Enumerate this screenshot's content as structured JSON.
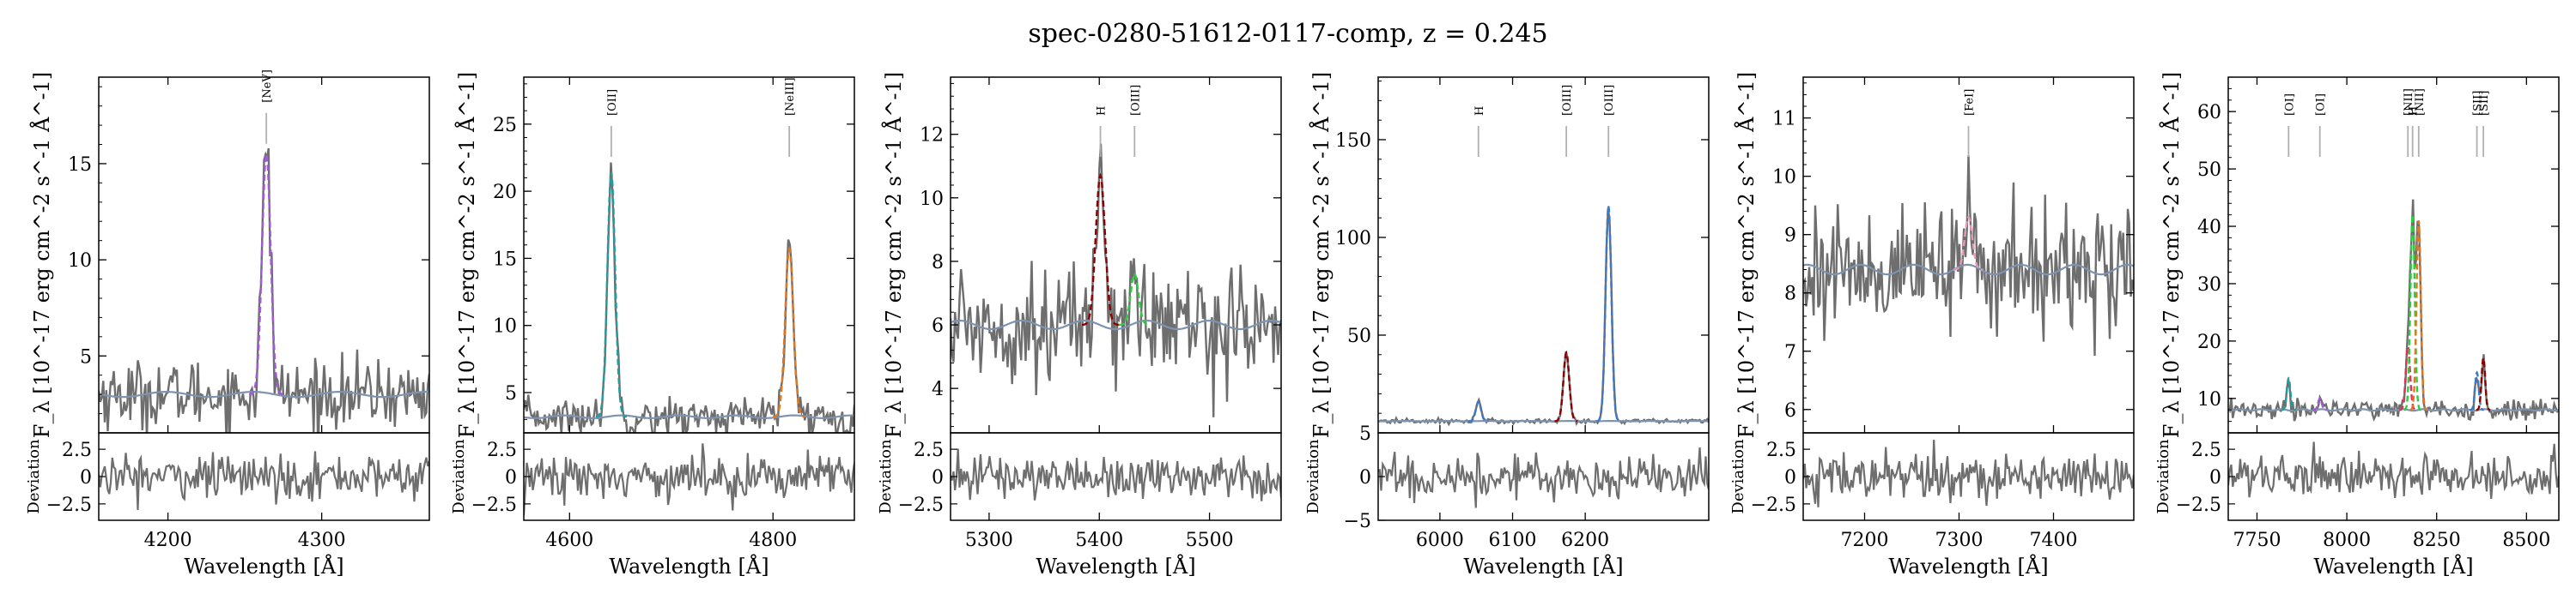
{
  "figure": {
    "title": "spec-0280-51612-0117-comp, z = 0.245",
    "ylabel_main": "F_λ [10^-17 erg cm^-2 s^-1 Å^-1]",
    "ylabel_resid": "Deviation",
    "xlabel": "Wavelength [Å]"
  },
  "colors": {
    "data": "#6e6e6e",
    "residual": "#6e6e6e",
    "continuum": "#7e93ad",
    "line_marker": "#b0b0b0",
    "purple": "#a35ad6",
    "teal": "#1f9e9e",
    "orange": "#e07820",
    "darkred": "#8b0000",
    "green": "#2ecc40",
    "blue": "#3a78c8",
    "pink": "#e89ab8",
    "red": "#e0305a"
  },
  "chart_data": [
    {
      "type": "line",
      "xlim": [
        4155,
        4370
      ],
      "ylim": [
        1,
        19.5
      ],
      "yticks": [
        5,
        10,
        15
      ],
      "xticks": [
        4200,
        4300
      ],
      "resid_ylim": [
        -4,
        4
      ],
      "resid_yticks": [
        -2.5,
        0.0,
        2.5
      ],
      "continuum": 3.0,
      "noise": 0.9,
      "lines": [
        {
          "label": "[NeV]",
          "wave": 4264,
          "amp": 12.5,
          "sigma": 2.8,
          "color": "purple"
        }
      ]
    },
    {
      "type": "line",
      "xlim": [
        4555,
        4880
      ],
      "ylim": [
        2,
        28.5
      ],
      "yticks": [
        5,
        10,
        15,
        20,
        25
      ],
      "xticks": [
        4600,
        4800
      ],
      "resid_ylim": [
        -4,
        4
      ],
      "resid_yticks": [
        -2.5,
        0.0,
        2.5
      ],
      "continuum": 3.2,
      "noise": 0.7,
      "lines": [
        {
          "label": "[OII]",
          "wave": 4641,
          "amp": 18.2,
          "sigma": 3.8,
          "color": "teal"
        },
        {
          "label": "[NeIII]",
          "wave": 4816,
          "amp": 12.5,
          "sigma": 4.0,
          "color": "orange"
        }
      ]
    },
    {
      "type": "line",
      "xlim": [
        5265,
        5565
      ],
      "ylim": [
        2.6,
        13.8
      ],
      "yticks": [
        4,
        6,
        8,
        10,
        12
      ],
      "xticks": [
        5300,
        5400,
        5500
      ],
      "resid_ylim": [
        -4,
        4
      ],
      "resid_yticks": [
        -2.5,
        0.0,
        2.5
      ],
      "continuum": 6.0,
      "noise": 0.9,
      "lines": [
        {
          "label": "H",
          "wave": 5401,
          "amp": 4.7,
          "sigma": 4.2,
          "color": "darkred"
        },
        {
          "label": "[OIII]",
          "wave": 5432,
          "amp": 1.6,
          "sigma": 3.6,
          "color": "green"
        }
      ]
    },
    {
      "type": "line",
      "xlim": [
        5915,
        6370
      ],
      "ylim": [
        0,
        182
      ],
      "yticks": [
        50,
        100,
        150
      ],
      "xticks": [
        6000,
        6100,
        6200
      ],
      "resid_ylim": [
        -5,
        5
      ],
      "resid_yticks": [
        -5,
        0,
        5
      ],
      "continuum": 6.0,
      "noise": 0.6,
      "lines": [
        {
          "label": "H",
          "wave": 6053,
          "amp": 10.0,
          "sigma": 3.5,
          "color": "blue"
        },
        {
          "label": "[OIII]",
          "wave": 6174,
          "amp": 35.0,
          "sigma": 4.0,
          "color": "darkred"
        },
        {
          "label": "[OIII]",
          "wave": 6232,
          "amp": 110.0,
          "sigma": 4.0,
          "color": "blue"
        }
      ]
    },
    {
      "type": "line",
      "xlim": [
        7135,
        7485
      ],
      "ylim": [
        5.6,
        11.7
      ],
      "yticks": [
        6,
        7,
        8,
        9,
        10,
        11
      ],
      "xticks": [
        7200,
        7300,
        7400
      ],
      "resid_ylim": [
        -4,
        4
      ],
      "resid_yticks": [
        -2.5,
        0.0,
        2.5
      ],
      "continuum": 8.4,
      "noise": 0.55,
      "lines": [
        {
          "label": "[FeI]",
          "wave": 7310,
          "amp": 0.9,
          "sigma": 4.0,
          "color": "pink"
        }
      ]
    },
    {
      "type": "line",
      "xlim": [
        7670,
        8590
      ],
      "ylim": [
        4,
        66
      ],
      "yticks": [
        10,
        20,
        30,
        40,
        50,
        60
      ],
      "xticks": [
        7750,
        8000,
        8250,
        8500
      ],
      "resid_ylim": [
        -4,
        4
      ],
      "resid_yticks": [
        -2.5,
        0.0,
        2.5
      ],
      "continuum": 8.0,
      "noise": 0.9,
      "lines": [
        {
          "label": "[OI]",
          "wave": 7838,
          "amp": 5.5,
          "sigma": 5,
          "color": "teal"
        },
        {
          "label": "[OI]",
          "wave": 7925,
          "amp": 2.0,
          "sigma": 5,
          "color": "purple"
        },
        {
          "label": "[NII]",
          "wave": 8170,
          "amp": 11.0,
          "sigma": 6,
          "color": "red"
        },
        {
          "label": "H",
          "wave": 8183,
          "amp": 34.0,
          "sigma": 6,
          "color": "green"
        },
        {
          "label": "[NII]",
          "wave": 8200,
          "amp": 33.0,
          "sigma": 6,
          "color": "orange"
        },
        {
          "label": "[SII]",
          "wave": 8362,
          "amp": 6.5,
          "sigma": 5,
          "color": "blue"
        },
        {
          "label": "[SII]",
          "wave": 8380,
          "amp": 9.0,
          "sigma": 5,
          "color": "darkred"
        }
      ]
    }
  ]
}
